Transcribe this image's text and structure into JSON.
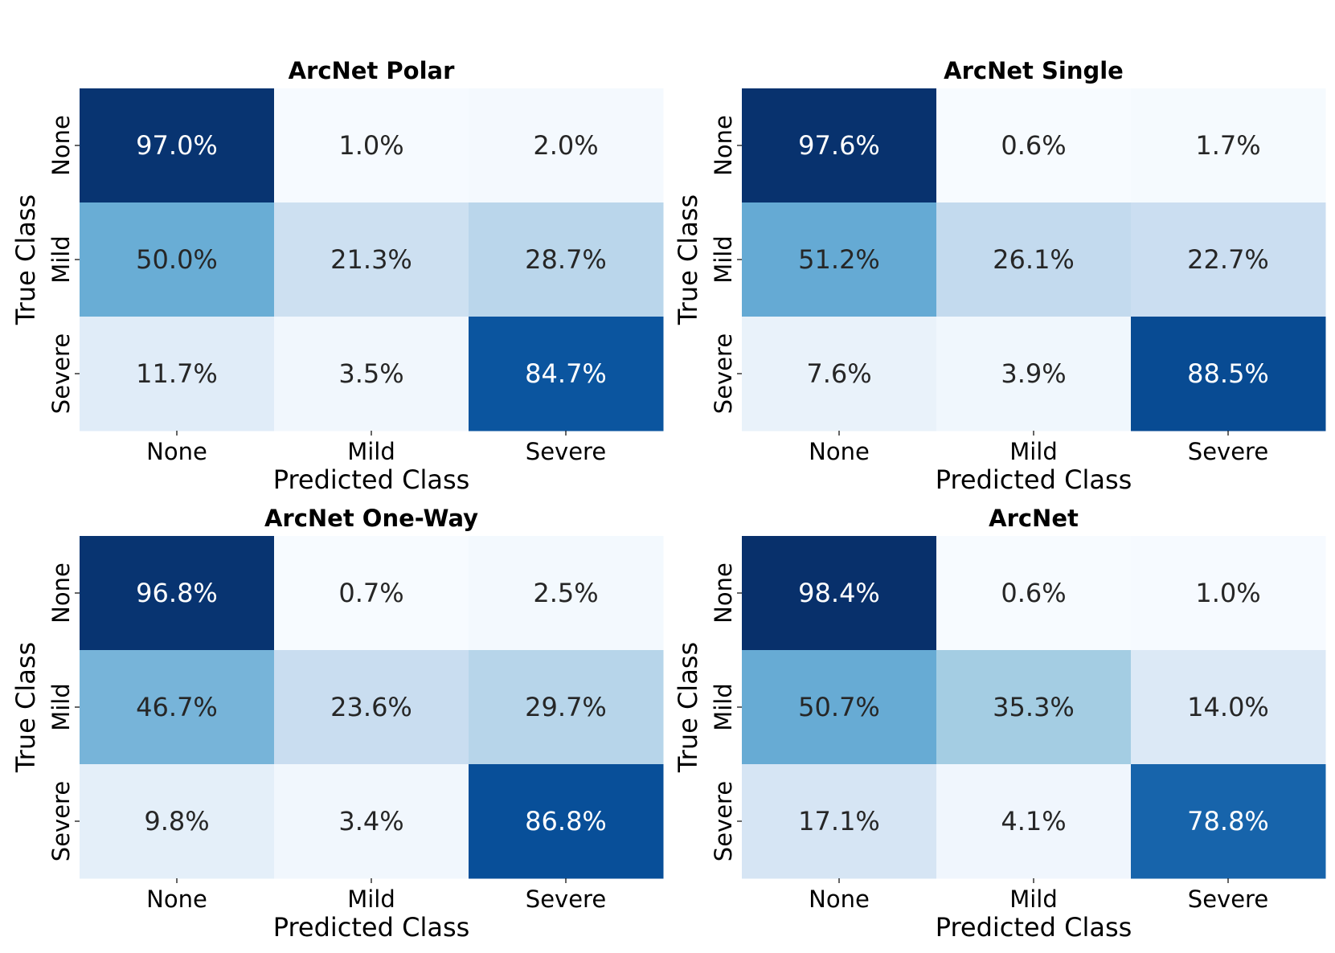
{
  "chart_data": [
    {
      "type": "heatmap",
      "title": "ArcNet Polar",
      "xlabel": "Predicted Class",
      "ylabel": "True Class",
      "x_categories": [
        "None",
        "Mild",
        "Severe"
      ],
      "y_categories": [
        "None",
        "Mild",
        "Severe"
      ],
      "values": [
        [
          97.0,
          1.0,
          2.0
        ],
        [
          50.0,
          21.3,
          28.7
        ],
        [
          11.7,
          3.5,
          84.7
        ]
      ],
      "labels": [
        [
          "97.0%",
          "1.0%",
          "2.0%"
        ],
        [
          "50.0%",
          "21.3%",
          "28.7%"
        ],
        [
          "11.7%",
          "3.5%",
          "84.7%"
        ]
      ],
      "colormap": "Blues",
      "vmin": 0.6,
      "vmax": 98.4
    },
    {
      "type": "heatmap",
      "title": "ArcNet Single",
      "xlabel": "Predicted Class",
      "ylabel": "True Class",
      "x_categories": [
        "None",
        "Mild",
        "Severe"
      ],
      "y_categories": [
        "None",
        "Mild",
        "Severe"
      ],
      "values": [
        [
          97.6,
          0.6,
          1.7
        ],
        [
          51.2,
          26.1,
          22.7
        ],
        [
          7.6,
          3.9,
          88.5
        ]
      ],
      "labels": [
        [
          "97.6%",
          "0.6%",
          "1.7%"
        ],
        [
          "51.2%",
          "26.1%",
          "22.7%"
        ],
        [
          "7.6%",
          "3.9%",
          "88.5%"
        ]
      ],
      "colormap": "Blues",
      "vmin": 0.6,
      "vmax": 98.4
    },
    {
      "type": "heatmap",
      "title": "ArcNet One-Way",
      "xlabel": "Predicted Class",
      "ylabel": "True Class",
      "x_categories": [
        "None",
        "Mild",
        "Severe"
      ],
      "y_categories": [
        "None",
        "Mild",
        "Severe"
      ],
      "values": [
        [
          96.8,
          0.7,
          2.5
        ],
        [
          46.7,
          23.6,
          29.7
        ],
        [
          9.8,
          3.4,
          86.8
        ]
      ],
      "labels": [
        [
          "96.8%",
          "0.7%",
          "2.5%"
        ],
        [
          "46.7%",
          "23.6%",
          "29.7%"
        ],
        [
          "9.8%",
          "3.4%",
          "86.8%"
        ]
      ],
      "colormap": "Blues",
      "vmin": 0.6,
      "vmax": 98.4
    },
    {
      "type": "heatmap",
      "title": "ArcNet",
      "xlabel": "Predicted Class",
      "ylabel": "True Class",
      "x_categories": [
        "None",
        "Mild",
        "Severe"
      ],
      "y_categories": [
        "None",
        "Mild",
        "Severe"
      ],
      "values": [
        [
          98.4,
          0.6,
          1.0
        ],
        [
          50.7,
          35.3,
          14.0
        ],
        [
          17.1,
          4.1,
          78.8
        ]
      ],
      "labels": [
        [
          "98.4%",
          "0.6%",
          "1.0%"
        ],
        [
          "50.7%",
          "35.3%",
          "14.0%"
        ],
        [
          "17.1%",
          "4.1%",
          "78.8%"
        ]
      ],
      "colormap": "Blues",
      "vmin": 0.6,
      "vmax": 98.4
    }
  ]
}
